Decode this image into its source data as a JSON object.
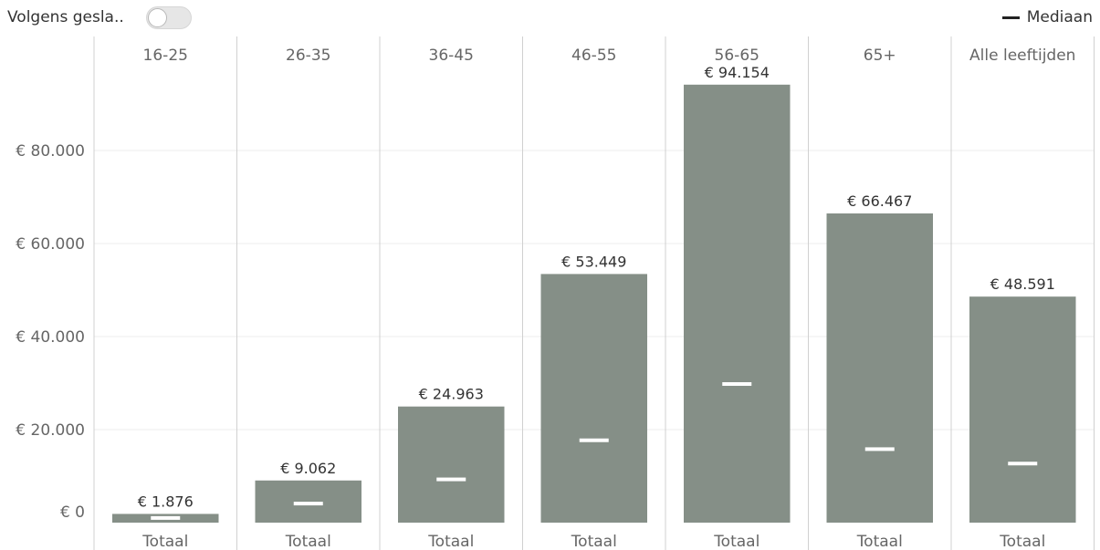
{
  "controls": {
    "toggle_label": "Volgens gesla..",
    "toggle_on": false,
    "legend_label": "Mediaan"
  },
  "colors": {
    "bar": "#858F87",
    "median": "#ffffff",
    "gridline": "#ececec",
    "divider": "#d0d0d0"
  },
  "chart_data": {
    "type": "bar",
    "categories": [
      "16-25",
      "26-35",
      "36-45",
      "46-55",
      "56-65",
      "65+",
      "Alle leeftijden"
    ],
    "subcategory": "Totaal",
    "series": [
      {
        "name": "",
        "values": [
          1876,
          9062,
          24963,
          53449,
          94154,
          66467,
          48591
        ]
      },
      {
        "name": "Mediaan",
        "values": [
          1000,
          4100,
          9300,
          17700,
          29800,
          15800,
          12700
        ]
      }
    ],
    "value_labels": [
      "€ 1.876",
      "€ 9.062",
      "€ 24.963",
      "€ 53.449",
      "€ 94.154",
      "€ 66.467",
      "€ 48.591"
    ],
    "y_ticks": [
      0,
      20000,
      40000,
      60000,
      80000
    ],
    "y_tick_labels": [
      "€ 0",
      "€ 20.000",
      "€ 40.000",
      "€ 60.000",
      "€ 80.000"
    ],
    "ylim": [
      0,
      94154
    ],
    "grid": true,
    "legend": "top-right",
    "title": "",
    "xlabel": "",
    "ylabel": ""
  }
}
